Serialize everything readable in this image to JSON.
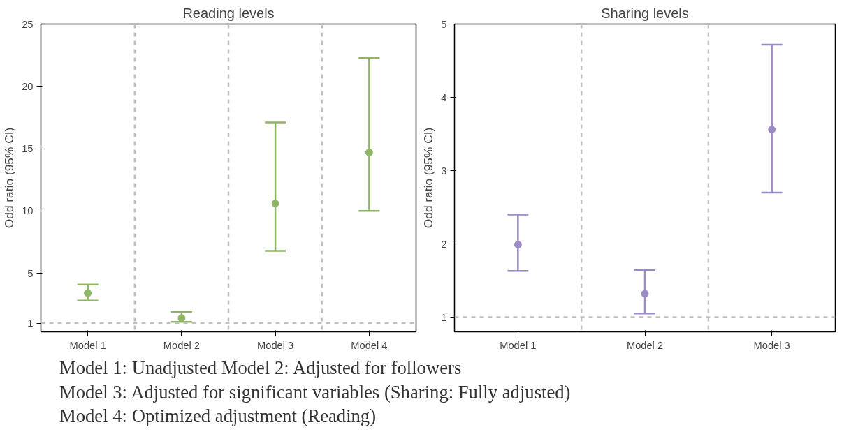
{
  "chart_data": [
    {
      "type": "scatter",
      "title": "Reading levels",
      "ylabel": "Odd ratio (95% CI)",
      "categories": [
        "Model 1",
        "Model 2",
        "Model 3",
        "Model 4"
      ],
      "series": [
        {
          "color": "#8db563",
          "values": [
            3.4,
            1.4,
            10.6,
            14.7
          ],
          "errors": [
            [
              2.8,
              4.1
            ],
            [
              1.1,
              1.9
            ],
            [
              6.8,
              17.1
            ],
            [
              10.0,
              22.3
            ]
          ]
        }
      ],
      "ylim": [
        0.3,
        25
      ],
      "yticks": [
        1,
        5,
        10,
        15,
        20,
        25
      ],
      "grid": false,
      "marker": "circle",
      "ref_lines": [
        {
          "axis": "y",
          "value": 1,
          "color": "#c0c0c0",
          "line_style": "dashed"
        }
      ],
      "annotations": [
        "Model 1: Unadjusted  Model 2: Adjusted for followers",
        "Model 3: Adjusted for significant variables (Sharing: Fully adjusted)",
        "Model 4: Optimized adjustment (Reading)"
      ]
    },
    {
      "type": "scatter",
      "title": "Sharing levels",
      "ylabel": "Odd ratio (95% CI)",
      "categories": [
        "Model 1",
        "Model 2",
        "Model 3"
      ],
      "series": [
        {
          "color": "#9b8ac4",
          "values": [
            1.99,
            1.32,
            3.56
          ],
          "errors": [
            [
              1.63,
              2.4
            ],
            [
              1.05,
              1.64
            ],
            [
              2.7,
              4.72
            ]
          ]
        }
      ],
      "ylim": [
        0.8,
        5
      ],
      "yticks": [
        1,
        2,
        3,
        4,
        5
      ],
      "grid": false,
      "marker": "circle",
      "ref_lines": [
        {
          "axis": "y",
          "value": 1,
          "color": "#c0c0c0",
          "line_style": "dashed"
        }
      ]
    }
  ]
}
